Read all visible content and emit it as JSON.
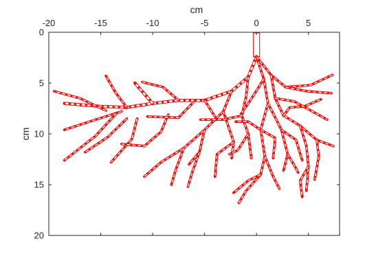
{
  "chart_data": {
    "type": "root-system plot",
    "xlabel": "cm",
    "ylabel": "cm",
    "x_axis_location": "top",
    "y_axis_direction": "reversed",
    "xlim": [
      -20,
      8
    ],
    "ylim": [
      0,
      20
    ],
    "xticks": [
      -20,
      -15,
      -10,
      -5,
      0,
      5
    ],
    "yticks": [
      0,
      5,
      10,
      15,
      20
    ],
    "grid": false,
    "box": true,
    "line_color": "#ff0000",
    "segments": [
      [
        [
          0,
          0.2
        ],
        [
          0,
          2.4
        ]
      ],
      [
        [
          0,
          2.4
        ],
        [
          -0.8,
          4.4
        ],
        [
          -2.4,
          5.8
        ],
        [
          -5.0,
          6.7
        ],
        [
          -7.5,
          6.7
        ],
        [
          -10.0,
          7.0
        ],
        [
          -12.5,
          7.4
        ],
        [
          -15.0,
          7.3
        ],
        [
          -18.5,
          7.0
        ]
      ],
      [
        [
          -10.0,
          7.0
        ],
        [
          -11.2,
          5.6
        ],
        [
          -11.7,
          5.0
        ]
      ],
      [
        [
          -12.5,
          7.4
        ],
        [
          -13.6,
          5.9
        ],
        [
          -14.5,
          4.3
        ]
      ],
      [
        [
          -13.0,
          7.8
        ],
        [
          -15.5,
          8.6
        ],
        [
          -18.5,
          9.6
        ]
      ],
      [
        [
          -14.5,
          7.7
        ],
        [
          -17.0,
          6.5
        ],
        [
          -19.5,
          5.8
        ]
      ],
      [
        [
          -13.5,
          8.0
        ],
        [
          -15.5,
          10.2
        ],
        [
          -18.5,
          12.6
        ]
      ],
      [
        [
          -12.5,
          8.5
        ],
        [
          -14.3,
          10.3
        ],
        [
          -16.5,
          11.8
        ]
      ],
      [
        [
          -11.5,
          8.5
        ],
        [
          -12.0,
          10.5
        ],
        [
          -14.0,
          12.8
        ]
      ],
      [
        [
          -8.5,
          8.1
        ],
        [
          -9.2,
          9.8
        ],
        [
          -10.8,
          11.2
        ],
        [
          -13.0,
          11.0
        ]
      ],
      [
        [
          -7.5,
          6.7
        ],
        [
          -9.0,
          5.4
        ],
        [
          -11.0,
          4.9
        ]
      ],
      [
        [
          -6.0,
          6.8
        ],
        [
          -7.5,
          8.4
        ],
        [
          -10.5,
          8.3
        ]
      ],
      [
        [
          -5.0,
          6.7
        ],
        [
          -4.0,
          8.3
        ]
      ],
      [
        [
          -2.4,
          5.8
        ],
        [
          -3.2,
          7.8
        ],
        [
          -5.0,
          9.6
        ],
        [
          -7.0,
          11.4
        ],
        [
          -9.2,
          12.8
        ],
        [
          -10.8,
          14.2
        ]
      ],
      [
        [
          -5.0,
          9.6
        ],
        [
          -5.5,
          11.8
        ],
        [
          -6.5,
          13.0
        ]
      ],
      [
        [
          -7.0,
          11.4
        ],
        [
          -7.8,
          13.6
        ],
        [
          -8.2,
          15.0
        ]
      ],
      [
        [
          -5.5,
          11.8
        ],
        [
          -6.2,
          13.8
        ],
        [
          -6.6,
          15.2
        ]
      ],
      [
        [
          -3.2,
          7.8
        ],
        [
          -2.2,
          10.8
        ],
        [
          -2.4,
          12.4
        ]
      ],
      [
        [
          -2.2,
          10.8
        ],
        [
          -3.8,
          12.0
        ],
        [
          -4.0,
          14.2
        ]
      ],
      [
        [
          -1.5,
          8.0
        ],
        [
          -0.8,
          10.0
        ],
        [
          -0.5,
          12.4
        ]
      ],
      [
        [
          -0.8,
          10.0
        ],
        [
          -1.8,
          11.6
        ],
        [
          -2.6,
          12.0
        ]
      ],
      [
        [
          -0.8,
          4.4
        ],
        [
          -1.0,
          6.3
        ],
        [
          -1.4,
          8.2
        ],
        [
          -3.2,
          8.6
        ],
        [
          -5.4,
          8.6
        ]
      ],
      [
        [
          0,
          2.4
        ],
        [
          0.7,
          4.6
        ],
        [
          1.1,
          7.0
        ],
        [
          0.4,
          9.6
        ],
        [
          0.8,
          12.2
        ],
        [
          0.4,
          14.0
        ],
        [
          -1.0,
          15.6
        ],
        [
          -1.7,
          16.8
        ]
      ],
      [
        [
          0.4,
          14.0
        ],
        [
          -0.8,
          14.6
        ],
        [
          -2.2,
          15.8
        ]
      ],
      [
        [
          0.8,
          12.2
        ],
        [
          1.6,
          14.2
        ],
        [
          2.2,
          15.4
        ]
      ],
      [
        [
          0,
          2.4
        ],
        [
          1.4,
          4.2
        ],
        [
          2.8,
          5.4
        ],
        [
          5.2,
          5.2
        ],
        [
          7.3,
          4.2
        ]
      ],
      [
        [
          2.8,
          5.4
        ],
        [
          4.8,
          5.8
        ],
        [
          7.2,
          6.0
        ]
      ],
      [
        [
          1.4,
          4.2
        ],
        [
          1.8,
          6.5
        ],
        [
          2.6,
          8.2
        ],
        [
          4.2,
          9.2
        ],
        [
          5.8,
          10.6
        ],
        [
          7.4,
          11.2
        ]
      ],
      [
        [
          4.2,
          9.2
        ],
        [
          4.8,
          11.2
        ],
        [
          5.0,
          13.2
        ],
        [
          4.8,
          15.6
        ]
      ],
      [
        [
          5.8,
          10.6
        ],
        [
          6.0,
          12.2
        ],
        [
          5.6,
          14.5
        ]
      ],
      [
        [
          5.0,
          13.2
        ],
        [
          4.2,
          14.6
        ],
        [
          4.4,
          16.2
        ]
      ],
      [
        [
          2.6,
          8.2
        ],
        [
          3.2,
          7.4
        ],
        [
          4.6,
          7.3
        ],
        [
          6.2,
          6.6
        ]
      ],
      [
        [
          1.1,
          7.0
        ],
        [
          2.4,
          9.6
        ],
        [
          3.0,
          12.0
        ],
        [
          2.6,
          13.6
        ]
      ],
      [
        [
          2.4,
          9.6
        ],
        [
          3.8,
          10.6
        ],
        [
          4.4,
          12.6
        ]
      ],
      [
        [
          0.4,
          9.6
        ],
        [
          -0.8,
          8.8
        ],
        [
          -2.0,
          8.8
        ]
      ],
      [
        [
          0.7,
          4.6
        ],
        [
          -0.4,
          6.4
        ],
        [
          -1.2,
          7.6
        ]
      ],
      [
        [
          1.8,
          6.5
        ],
        [
          3.6,
          6.8
        ],
        [
          5.4,
          7.8
        ],
        [
          6.8,
          8.6
        ]
      ],
      [
        [
          0.4,
          9.6
        ],
        [
          1.8,
          10.4
        ],
        [
          1.6,
          12.4
        ]
      ],
      [
        [
          3.0,
          12.0
        ],
        [
          3.8,
          13.4
        ],
        [
          4.0,
          13.8
        ]
      ]
    ]
  }
}
